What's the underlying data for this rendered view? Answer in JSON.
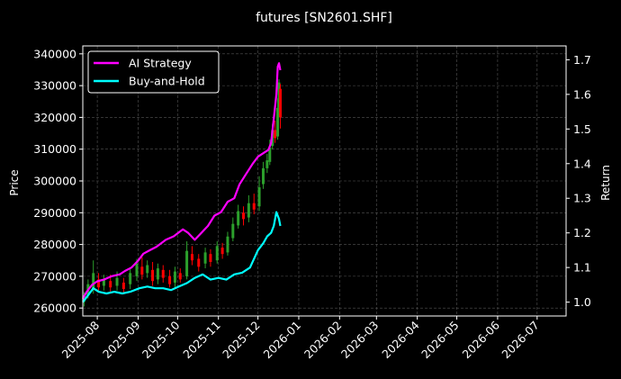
{
  "chart_data": {
    "type": "line",
    "title": "futures [SN2601.SHF]",
    "xlabel": "",
    "ylabel": "Price",
    "y2label": "Return",
    "x_tick_labels": [
      "2025-08",
      "2025-09",
      "2025-10",
      "2025-11",
      "2025-12",
      "2026-01",
      "2026-02",
      "2026-03",
      "2026-04",
      "2026-05",
      "2026-06",
      "2026-07"
    ],
    "xlim": [
      "2025-07-21",
      "2026-07-23"
    ],
    "ylim": [
      257500,
      342500
    ],
    "y_ticks": [
      260000,
      270000,
      280000,
      290000,
      300000,
      310000,
      320000,
      330000,
      340000
    ],
    "y2lim": [
      0.96,
      1.74
    ],
    "y2_ticks": [
      1.0,
      1.1,
      1.2,
      1.3,
      1.4,
      1.5,
      1.6,
      1.7
    ],
    "grid": true,
    "legend_position": "top-left",
    "colors": {
      "ai": "#ff00ff",
      "bh": "#00ffff",
      "up": "#2ca02c",
      "down": "#ff0000",
      "background": "#000000"
    },
    "series": [
      {
        "name": "AI Strategy",
        "axis": "right",
        "points": [
          [
            "2025-07-21",
            1.01
          ],
          [
            "2025-07-24",
            1.03
          ],
          [
            "2025-07-28",
            1.05
          ],
          [
            "2025-08-01",
            1.06
          ],
          [
            "2025-08-06",
            1.065
          ],
          [
            "2025-08-12",
            1.075
          ],
          [
            "2025-08-18",
            1.08
          ],
          [
            "2025-08-22",
            1.09
          ],
          [
            "2025-08-27",
            1.1
          ],
          [
            "2025-09-01",
            1.12
          ],
          [
            "2025-09-05",
            1.14
          ],
          [
            "2025-09-10",
            1.15
          ],
          [
            "2025-09-15",
            1.16
          ],
          [
            "2025-09-22",
            1.18
          ],
          [
            "2025-09-28",
            1.19
          ],
          [
            "2025-10-05",
            1.21
          ],
          [
            "2025-10-09",
            1.2
          ],
          [
            "2025-10-14",
            1.18
          ],
          [
            "2025-10-19",
            1.2
          ],
          [
            "2025-10-24",
            1.22
          ],
          [
            "2025-10-29",
            1.25
          ],
          [
            "2025-11-03",
            1.26
          ],
          [
            "2025-11-08",
            1.29
          ],
          [
            "2025-11-13",
            1.3
          ],
          [
            "2025-11-17",
            1.34
          ],
          [
            "2025-11-22",
            1.37
          ],
          [
            "2025-11-27",
            1.4
          ],
          [
            "2025-12-01",
            1.42
          ],
          [
            "2025-12-05",
            1.43
          ],
          [
            "2025-12-09",
            1.44
          ],
          [
            "2025-12-11",
            1.46
          ],
          [
            "2025-12-13",
            1.53
          ],
          [
            "2025-12-15",
            1.6
          ],
          [
            "2025-12-16",
            1.68
          ],
          [
            "2025-12-17",
            1.69
          ],
          [
            "2025-12-18",
            1.67
          ]
        ]
      },
      {
        "name": "Buy-and-Hold",
        "axis": "right",
        "points": [
          [
            "2025-07-21",
            1.0
          ],
          [
            "2025-07-25",
            1.02
          ],
          [
            "2025-07-29",
            1.04
          ],
          [
            "2025-08-02",
            1.03
          ],
          [
            "2025-08-08",
            1.025
          ],
          [
            "2025-08-14",
            1.03
          ],
          [
            "2025-08-20",
            1.025
          ],
          [
            "2025-08-26",
            1.03
          ],
          [
            "2025-09-02",
            1.04
          ],
          [
            "2025-09-08",
            1.045
          ],
          [
            "2025-09-14",
            1.04
          ],
          [
            "2025-09-20",
            1.04
          ],
          [
            "2025-09-26",
            1.035
          ],
          [
            "2025-10-02",
            1.045
          ],
          [
            "2025-10-08",
            1.055
          ],
          [
            "2025-10-14",
            1.07
          ],
          [
            "2025-10-20",
            1.08
          ],
          [
            "2025-10-26",
            1.065
          ],
          [
            "2025-11-01",
            1.07
          ],
          [
            "2025-11-07",
            1.065
          ],
          [
            "2025-11-13",
            1.08
          ],
          [
            "2025-11-19",
            1.085
          ],
          [
            "2025-11-25",
            1.1
          ],
          [
            "2025-12-01",
            1.15
          ],
          [
            "2025-12-05",
            1.17
          ],
          [
            "2025-12-08",
            1.19
          ],
          [
            "2025-12-11",
            1.2
          ],
          [
            "2025-12-13",
            1.22
          ],
          [
            "2025-12-15",
            1.26
          ],
          [
            "2025-12-17",
            1.24
          ],
          [
            "2025-12-18",
            1.22
          ]
        ]
      }
    ],
    "candlesticks": [
      {
        "date": "2025-07-22",
        "open": 262000,
        "close": 264000,
        "high": 265000,
        "low": 260500
      },
      {
        "date": "2025-07-25",
        "open": 264000,
        "close": 267500,
        "high": 269000,
        "low": 263000
      },
      {
        "date": "2025-07-29",
        "open": 266000,
        "close": 271000,
        "high": 275000,
        "low": 264500
      },
      {
        "date": "2025-08-02",
        "open": 269000,
        "close": 266500,
        "high": 271000,
        "low": 265000
      },
      {
        "date": "2025-08-06",
        "open": 267000,
        "close": 269000,
        "high": 270500,
        "low": 265500
      },
      {
        "date": "2025-08-11",
        "open": 268500,
        "close": 266500,
        "high": 270500,
        "low": 265000
      },
      {
        "date": "2025-08-16",
        "open": 267000,
        "close": 269500,
        "high": 271500,
        "low": 265500
      },
      {
        "date": "2025-08-21",
        "open": 268000,
        "close": 266000,
        "high": 269500,
        "low": 264500
      },
      {
        "date": "2025-08-26",
        "open": 267500,
        "close": 271000,
        "high": 272500,
        "low": 266000
      },
      {
        "date": "2025-08-31",
        "open": 270000,
        "close": 274000,
        "high": 275500,
        "low": 268500
      },
      {
        "date": "2025-09-04",
        "open": 273000,
        "close": 270500,
        "high": 276000,
        "low": 269000
      },
      {
        "date": "2025-09-08",
        "open": 271000,
        "close": 273500,
        "high": 275000,
        "low": 269500
      },
      {
        "date": "2025-09-12",
        "open": 272000,
        "close": 268500,
        "high": 274500,
        "low": 267000
      },
      {
        "date": "2025-09-16",
        "open": 269000,
        "close": 272500,
        "high": 274000,
        "low": 267500
      },
      {
        "date": "2025-09-20",
        "open": 272000,
        "close": 269500,
        "high": 273500,
        "low": 268000
      },
      {
        "date": "2025-09-25",
        "open": 270000,
        "close": 267500,
        "high": 272000,
        "low": 266500
      },
      {
        "date": "2025-09-29",
        "open": 268000,
        "close": 271500,
        "high": 273000,
        "low": 266500
      },
      {
        "date": "2025-10-03",
        "open": 271000,
        "close": 269000,
        "high": 272500,
        "low": 268000
      },
      {
        "date": "2025-10-08",
        "open": 270000,
        "close": 278000,
        "high": 281000,
        "low": 269000
      },
      {
        "date": "2025-10-12",
        "open": 277000,
        "close": 275000,
        "high": 279500,
        "low": 273500
      },
      {
        "date": "2025-10-17",
        "open": 275500,
        "close": 273000,
        "high": 277000,
        "low": 271500
      },
      {
        "date": "2025-10-22",
        "open": 274000,
        "close": 277500,
        "high": 279000,
        "low": 272500
      },
      {
        "date": "2025-10-26",
        "open": 277000,
        "close": 274500,
        "high": 278500,
        "low": 273000
      },
      {
        "date": "2025-10-31",
        "open": 275000,
        "close": 279500,
        "high": 281000,
        "low": 274000
      },
      {
        "date": "2025-11-04",
        "open": 279000,
        "close": 277000,
        "high": 280500,
        "low": 275500
      },
      {
        "date": "2025-11-08",
        "open": 277500,
        "close": 282500,
        "high": 284000,
        "low": 276500
      },
      {
        "date": "2025-11-12",
        "open": 282000,
        "close": 286500,
        "high": 288500,
        "low": 281000
      },
      {
        "date": "2025-11-16",
        "open": 286000,
        "close": 290500,
        "high": 292500,
        "low": 285000
      },
      {
        "date": "2025-11-20",
        "open": 290000,
        "close": 288000,
        "high": 292000,
        "low": 286000
      },
      {
        "date": "2025-11-24",
        "open": 288500,
        "close": 293000,
        "high": 295500,
        "low": 287000
      },
      {
        "date": "2025-11-28",
        "open": 293000,
        "close": 291000,
        "high": 296000,
        "low": 289500
      },
      {
        "date": "2025-12-02",
        "open": 292000,
        "close": 298000,
        "high": 301500,
        "low": 290500
      },
      {
        "date": "2025-12-05",
        "open": 299000,
        "close": 304000,
        "high": 306000,
        "low": 297500
      },
      {
        "date": "2025-12-08",
        "open": 304000,
        "close": 306500,
        "high": 308500,
        "low": 302500
      },
      {
        "date": "2025-12-10",
        "open": 306000,
        "close": 310500,
        "high": 313000,
        "low": 305000
      },
      {
        "date": "2025-12-12",
        "open": 311000,
        "close": 316000,
        "high": 318000,
        "low": 310000
      },
      {
        "date": "2025-12-14",
        "open": 316000,
        "close": 313500,
        "high": 319000,
        "low": 312000
      },
      {
        "date": "2025-12-16",
        "open": 314000,
        "close": 323000,
        "high": 326000,
        "low": 313000
      },
      {
        "date": "2025-12-17",
        "open": 323000,
        "close": 331000,
        "high": 332000,
        "low": 321000
      },
      {
        "date": "2025-12-18",
        "open": 329000,
        "close": 320000,
        "high": 330500,
        "low": 316500
      }
    ]
  }
}
